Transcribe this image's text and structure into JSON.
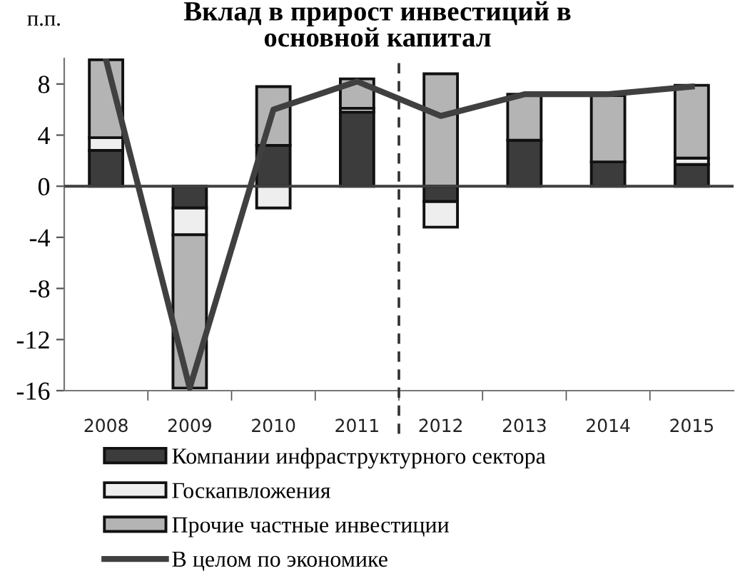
{
  "chart_data": {
    "type": "bar",
    "stacked": true,
    "title": "Вклад в прирост инвестиций в\nосновной капитал",
    "ylabel": "п.п.",
    "x": [
      2008,
      2009,
      2010,
      2011,
      2012,
      2013,
      2014,
      2015
    ],
    "series": [
      {
        "name": "Компании инфраструктурного сектора",
        "color": "#3c3c3c",
        "values": [
          2.8,
          -1.7,
          3.2,
          5.8,
          -1.2,
          3.6,
          1.9,
          1.7
        ]
      },
      {
        "name": "Госкапвложения",
        "color": "#eeeeee",
        "values": [
          1.0,
          -2.1,
          -1.7,
          0.3,
          -2.0,
          null,
          null,
          0.5
        ]
      },
      {
        "name": "Прочие частные инвестиции",
        "color": "#b4b4b4",
        "values": [
          6.1,
          -12.0,
          4.6,
          2.3,
          8.8,
          3.6,
          5.2,
          5.7
        ]
      },
      {
        "name": "В целом по экономике",
        "type": "line",
        "color": "#404040",
        "values": [
          9.9,
          -15.8,
          6.0,
          8.2,
          5.5,
          7.2,
          7.2,
          7.8
        ]
      }
    ],
    "xlim": [
      2007.5,
      2015.5
    ],
    "xticks": [
      2008,
      2009,
      2010,
      2011,
      2012,
      2013,
      2014,
      2015,
      {
        "value": 2008.5,
        "label": null
      },
      {
        "value": 2009.5,
        "label": null
      },
      {
        "value": 2010.5,
        "label": null
      },
      {
        "value": 2011.5,
        "label": null
      },
      {
        "value": 2012.5,
        "label": null
      },
      {
        "value": 2013.5,
        "label": null
      },
      {
        "value": 2014.5,
        "label": null
      }
    ],
    "ylim": [
      -16,
      10
    ],
    "yticks": [
      -16,
      -12,
      -8,
      -4,
      0,
      4,
      8
    ],
    "ref_lines": [
      {
        "axis": "y",
        "value": 0,
        "color": "#404040",
        "line_style": "solid"
      },
      {
        "axis": "x",
        "value": 2011.5,
        "color": "#303030",
        "line_style": "dashed"
      }
    ],
    "legend": "bottom",
    "grid": false,
    "marker": "none"
  }
}
